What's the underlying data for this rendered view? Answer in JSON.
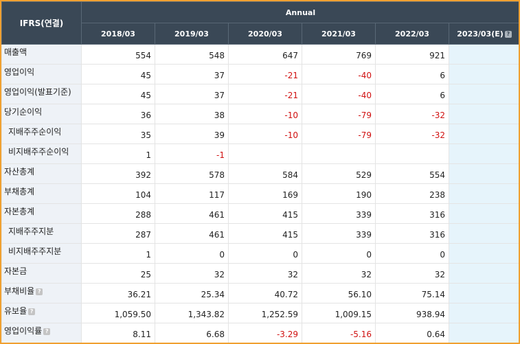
{
  "header": {
    "corner": "IFRS(연결)",
    "annual": "Annual",
    "years": [
      "2018/03",
      "2019/03",
      "2020/03",
      "2021/03",
      "2022/03"
    ],
    "estimate_year": "2023/03(E)"
  },
  "rows": [
    {
      "label": "매출액",
      "values": [
        "554",
        "548",
        "647",
        "769",
        "921"
      ],
      "neg": [
        false,
        false,
        false,
        false,
        false
      ]
    },
    {
      "label": "영업이익",
      "values": [
        "45",
        "37",
        "-21",
        "-40",
        "6"
      ],
      "neg": [
        false,
        false,
        true,
        true,
        false
      ]
    },
    {
      "label": "영업이익(발표기준)",
      "values": [
        "45",
        "37",
        "-21",
        "-40",
        "6"
      ],
      "neg": [
        false,
        false,
        true,
        true,
        false
      ]
    },
    {
      "label": "당기순이익",
      "values": [
        "36",
        "38",
        "-10",
        "-79",
        "-32"
      ],
      "neg": [
        false,
        false,
        true,
        true,
        true
      ]
    },
    {
      "label": "지배주주순이익",
      "values": [
        "35",
        "39",
        "-10",
        "-79",
        "-32"
      ],
      "neg": [
        false,
        false,
        true,
        true,
        true
      ]
    },
    {
      "label": "비지배주주순이익",
      "values": [
        "1",
        "-1",
        "",
        "",
        ""
      ],
      "neg": [
        false,
        true,
        false,
        false,
        false
      ]
    },
    {
      "label": "자산총계",
      "values": [
        "392",
        "578",
        "584",
        "529",
        "554"
      ],
      "neg": [
        false,
        false,
        false,
        false,
        false
      ]
    },
    {
      "label": "부채총계",
      "values": [
        "104",
        "117",
        "169",
        "190",
        "238"
      ],
      "neg": [
        false,
        false,
        false,
        false,
        false
      ]
    },
    {
      "label": "자본총계",
      "values": [
        "288",
        "461",
        "415",
        "339",
        "316"
      ],
      "neg": [
        false,
        false,
        false,
        false,
        false
      ]
    },
    {
      "label": "지배주주지분",
      "values": [
        "287",
        "461",
        "415",
        "339",
        "316"
      ],
      "neg": [
        false,
        false,
        false,
        false,
        false
      ]
    },
    {
      "label": "비지배주주지분",
      "values": [
        "1",
        "0",
        "0",
        "0",
        "0"
      ],
      "neg": [
        false,
        false,
        false,
        false,
        false
      ]
    },
    {
      "label": "자본금",
      "values": [
        "25",
        "32",
        "32",
        "32",
        "32"
      ],
      "neg": [
        false,
        false,
        false,
        false,
        false
      ]
    },
    {
      "label": "부채비율",
      "values": [
        "36.21",
        "25.34",
        "40.72",
        "56.10",
        "75.14"
      ],
      "neg": [
        false,
        false,
        false,
        false,
        false
      ]
    },
    {
      "label": "유보율",
      "values": [
        "1,059.50",
        "1,343.82",
        "1,252.59",
        "1,009.15",
        "938.94"
      ],
      "neg": [
        false,
        false,
        false,
        false,
        false
      ]
    },
    {
      "label": "영업이익률",
      "values": [
        "8.11",
        "6.68",
        "-3.29",
        "-5.16",
        "0.64"
      ],
      "neg": [
        false,
        false,
        true,
        true,
        false
      ]
    }
  ],
  "help_icon": "?"
}
